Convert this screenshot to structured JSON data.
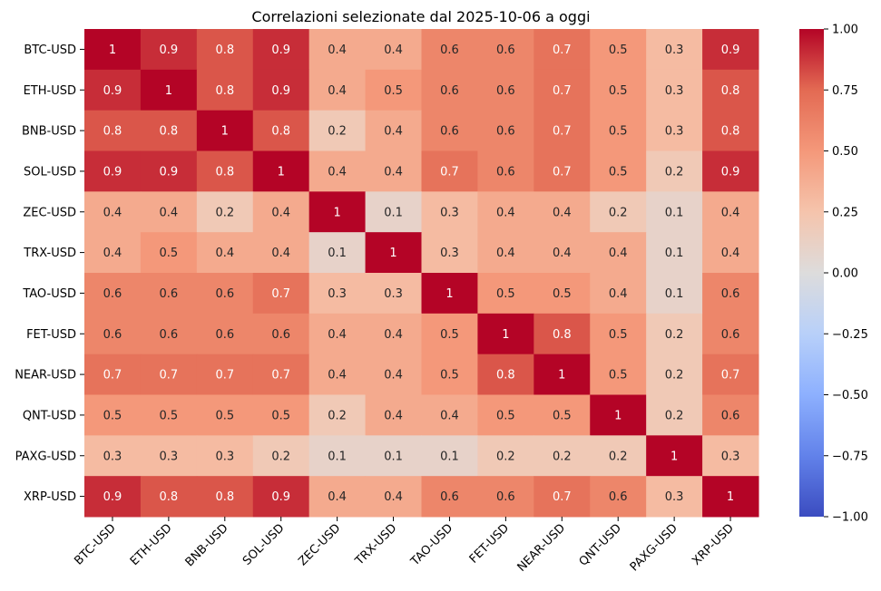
{
  "chart_data": {
    "type": "heatmap",
    "title": "Correlazioni selezionate dal 2025-10-06 a oggi",
    "xlabel": "",
    "ylabel": "",
    "labels": [
      "BTC-USD",
      "ETH-USD",
      "BNB-USD",
      "SOL-USD",
      "ZEC-USD",
      "TRX-USD",
      "TAO-USD",
      "FET-USD",
      "NEAR-USD",
      "QNT-USD",
      "PAXG-USD",
      "XRP-USD"
    ],
    "values": [
      [
        1,
        0.9,
        0.8,
        0.9,
        0.4,
        0.4,
        0.6,
        0.6,
        0.7,
        0.5,
        0.3,
        0.9
      ],
      [
        0.9,
        1,
        0.8,
        0.9,
        0.4,
        0.5,
        0.6,
        0.6,
        0.7,
        0.5,
        0.3,
        0.8
      ],
      [
        0.8,
        0.8,
        1,
        0.8,
        0.2,
        0.4,
        0.6,
        0.6,
        0.7,
        0.5,
        0.3,
        0.8
      ],
      [
        0.9,
        0.9,
        0.8,
        1,
        0.4,
        0.4,
        0.7,
        0.6,
        0.7,
        0.5,
        0.2,
        0.9
      ],
      [
        0.4,
        0.4,
        0.2,
        0.4,
        1,
        0.1,
        0.3,
        0.4,
        0.4,
        0.2,
        0.1,
        0.4
      ],
      [
        0.4,
        0.5,
        0.4,
        0.4,
        0.1,
        1,
        0.3,
        0.4,
        0.4,
        0.4,
        0.1,
        0.4
      ],
      [
        0.6,
        0.6,
        0.6,
        0.7,
        0.3,
        0.3,
        1,
        0.5,
        0.5,
        0.4,
        0.1,
        0.6
      ],
      [
        0.6,
        0.6,
        0.6,
        0.6,
        0.4,
        0.4,
        0.5,
        1,
        0.8,
        0.5,
        0.2,
        0.6
      ],
      [
        0.7,
        0.7,
        0.7,
        0.7,
        0.4,
        0.4,
        0.5,
        0.8,
        1,
        0.5,
        0.2,
        0.7
      ],
      [
        0.5,
        0.5,
        0.5,
        0.5,
        0.2,
        0.4,
        0.4,
        0.5,
        0.5,
        1,
        0.2,
        0.6
      ],
      [
        0.3,
        0.3,
        0.3,
        0.2,
        0.1,
        0.1,
        0.1,
        0.2,
        0.2,
        0.2,
        1,
        0.3
      ],
      [
        0.9,
        0.8,
        0.8,
        0.9,
        0.4,
        0.4,
        0.6,
        0.6,
        0.7,
        0.6,
        0.3,
        1
      ]
    ],
    "colormap": "coolwarm",
    "vmin": -1.0,
    "vmax": 1.0,
    "colorbar_ticks": [
      "1.00",
      "0.75",
      "0.50",
      "0.25",
      "0.00",
      "−0.25",
      "−0.50",
      "−0.75",
      "−1.00"
    ],
    "colorbar_tick_values": [
      1.0,
      0.75,
      0.5,
      0.25,
      0.0,
      -0.25,
      -0.5,
      -0.75,
      -1.0
    ],
    "colorbar_colors": [
      "#3b4cc0",
      "#6282ea",
      "#8db0fe",
      "#b8d0f9",
      "#dddcdc",
      "#f5c4ac",
      "#f4987a",
      "#e36a53",
      "#b40426"
    ]
  }
}
